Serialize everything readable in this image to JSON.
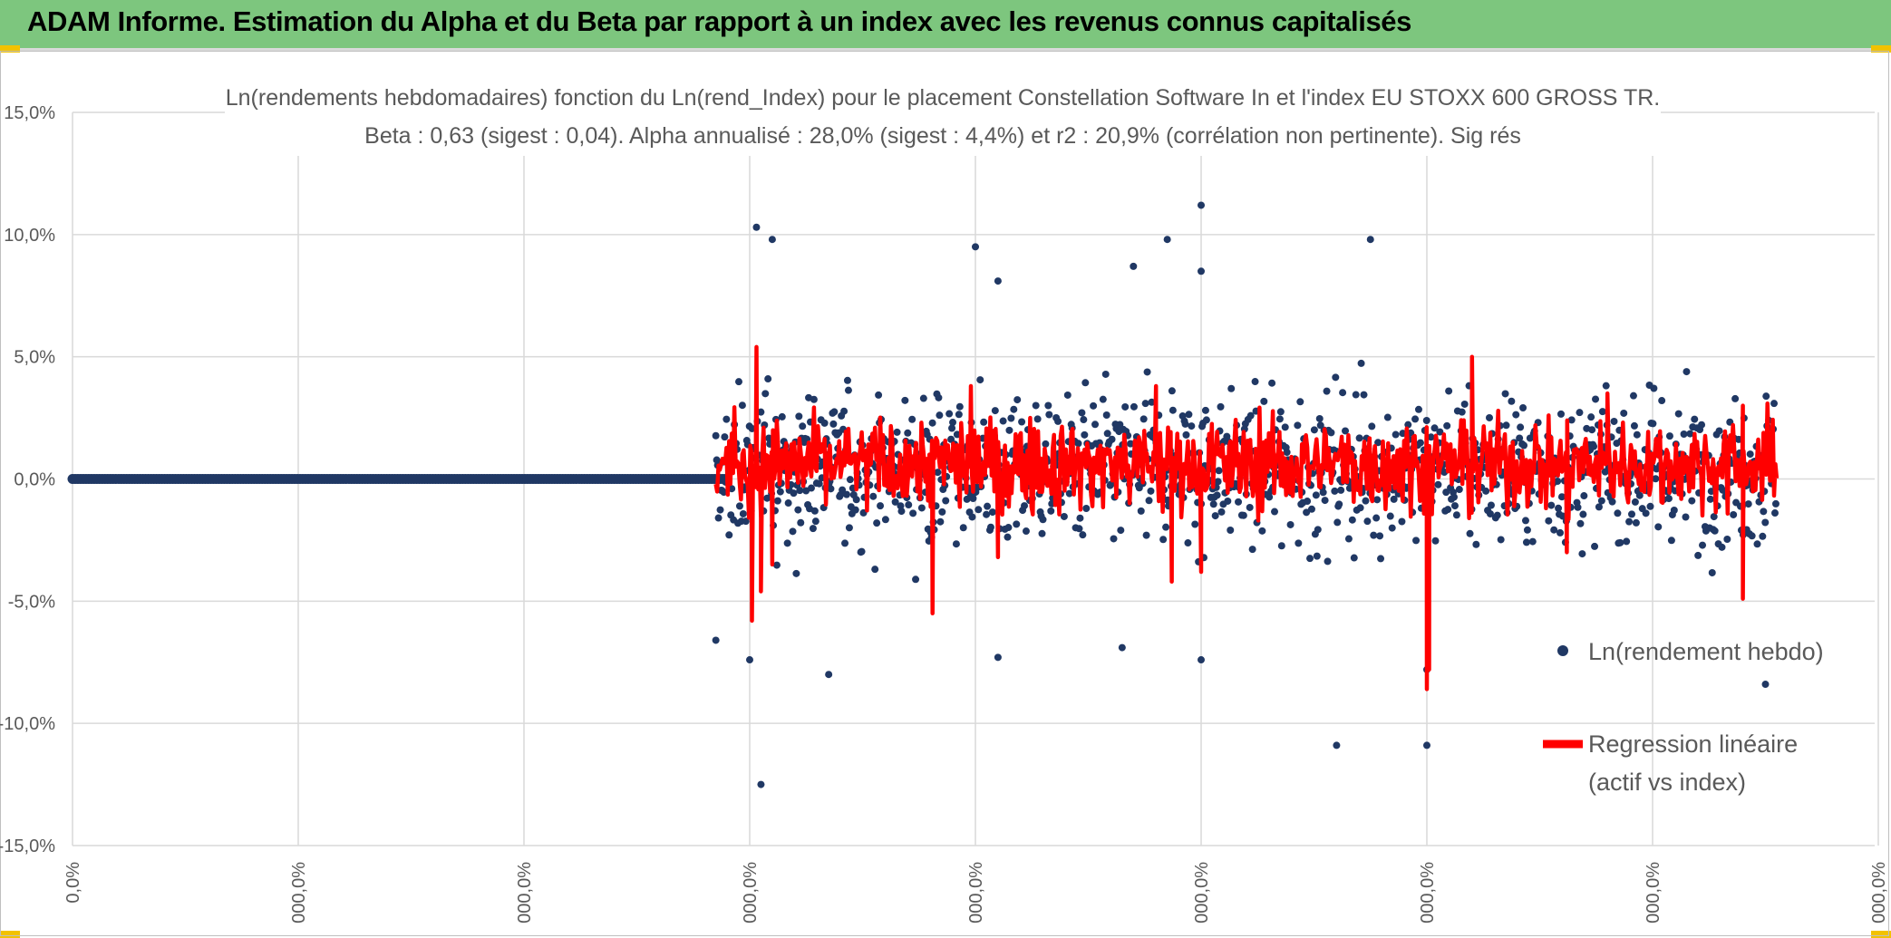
{
  "header": {
    "title": "ADAM Informe. Estimation du Alpha et du Beta par rapport à un index avec les revenus connus capitalisés"
  },
  "colors": {
    "header_bg": "#7dc67e",
    "points": "#203864",
    "regression": "#ff0000",
    "grid": "#d9d9d9",
    "text": "#595959"
  },
  "chart_data": {
    "type": "scatter",
    "title_line1": "Ln(rendements hebdomadaires) fonction du Ln(rend_Index) pour le placement Constellation Software In et l'index EU STOXX 600 GROSS TR.",
    "title_line2": "Beta : 0,63 (sigest : 0,04). Alpha annualisé : 28,0% (sigest : 4,4%) et r2 : 20,9% (corrélation non pertinente). Sig rés",
    "y_ticks": [
      "15,0%",
      "10,0%",
      "5,0%",
      "0,0%",
      "-5,0%",
      "-10,0%",
      "-15,0%"
    ],
    "y_tick_values": [
      15,
      10,
      5,
      0,
      -5,
      -10,
      -15
    ],
    "ylim": [
      -15,
      15
    ],
    "x_ticks": [
      "0,0%",
      "000,0%",
      "000,0%",
      "000,0%",
      "000,0%",
      "000,0%",
      "000,0%",
      "000,0%",
      "000,0%"
    ],
    "x_tick_positions": [
      0,
      1,
      2,
      3,
      4,
      5,
      6,
      7,
      8
    ],
    "xlim": [
      0,
      8
    ],
    "legend": [
      {
        "label": "Ln(rendement hebdo)",
        "kind": "marker"
      },
      {
        "label_line1": "Regression linéaire",
        "label_line2": "(actif vs index)",
        "kind": "line"
      }
    ],
    "series": [
      {
        "name": "Ln(rendement hebdo)",
        "flat_segment": {
          "x_from": 0.0,
          "x_to": 2.9,
          "y": 0.0
        },
        "scatter_range": {
          "x_from": 2.85,
          "x_to": 7.55,
          "y_center": 0.4,
          "y_spread": 2.2
        },
        "notable_points": [
          {
            "x": 3.03,
            "y": 10.3
          },
          {
            "x": 3.1,
            "y": 9.8
          },
          {
            "x": 3.05,
            "y": -12.5
          },
          {
            "x": 4.0,
            "y": 9.5
          },
          {
            "x": 4.1,
            "y": 8.1
          },
          {
            "x": 4.7,
            "y": 8.7
          },
          {
            "x": 5.0,
            "y": 11.2
          },
          {
            "x": 5.0,
            "y": 8.5
          },
          {
            "x": 4.85,
            "y": 9.8
          },
          {
            "x": 5.75,
            "y": 9.8
          },
          {
            "x": 5.6,
            "y": -10.9
          },
          {
            "x": 6.0,
            "y": -10.9
          },
          {
            "x": 7.5,
            "y": -8.4
          },
          {
            "x": 4.65,
            "y": -6.9
          },
          {
            "x": 3.35,
            "y": -8.0
          },
          {
            "x": 2.85,
            "y": -6.6
          },
          {
            "x": 3.0,
            "y": -7.4
          },
          {
            "x": 4.1,
            "y": -7.3
          },
          {
            "x": 5.0,
            "y": -7.4
          },
          {
            "x": 6.0,
            "y": -7.8
          }
        ]
      },
      {
        "name": "Regression linéaire (actif vs index)",
        "x_from": 2.85,
        "x_to": 7.55,
        "y_center": 0.6,
        "y_spread": 1.3,
        "notable_points": [
          {
            "x": 3.03,
            "y": 5.4
          },
          {
            "x": 3.01,
            "y": -5.8
          },
          {
            "x": 3.05,
            "y": -4.6
          },
          {
            "x": 3.1,
            "y": -3.5
          },
          {
            "x": 3.98,
            "y": 3.8
          },
          {
            "x": 3.81,
            "y": -5.5
          },
          {
            "x": 4.1,
            "y": -3.2
          },
          {
            "x": 4.8,
            "y": 3.8
          },
          {
            "x": 4.87,
            "y": -4.2
          },
          {
            "x": 5.0,
            "y": -3.8
          },
          {
            "x": 6.0,
            "y": -8.6
          },
          {
            "x": 6.01,
            "y": -7.8
          },
          {
            "x": 6.2,
            "y": 5.0
          },
          {
            "x": 6.62,
            "y": -3.0
          },
          {
            "x": 6.8,
            "y": 3.5
          },
          {
            "x": 7.4,
            "y": 3.0
          },
          {
            "x": 7.4,
            "y": -4.9
          }
        ]
      }
    ]
  }
}
